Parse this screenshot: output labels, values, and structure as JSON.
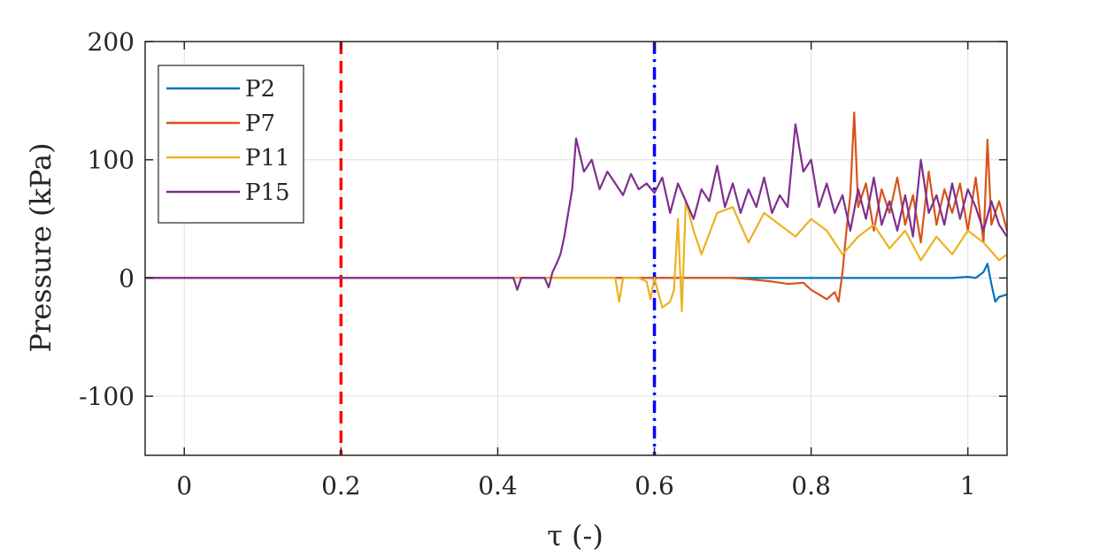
{
  "chart_data": {
    "type": "line",
    "title": "",
    "xlabel": "τ (-)",
    "ylabel": "Pressure (kPa)",
    "xlim": [
      -0.05,
      1.05
    ],
    "ylim": [
      -150,
      200
    ],
    "xticks": [
      0,
      0.2,
      0.4,
      0.6,
      0.8,
      1
    ],
    "xtick_labels": [
      "0",
      "0.2",
      "0.4",
      "0.6",
      "0.8",
      "1"
    ],
    "yticks": [
      -100,
      0,
      100,
      200
    ],
    "ytick_labels": [
      "-100",
      "0",
      "100",
      "200"
    ],
    "grid": true,
    "legend_position": "top-left",
    "vlines": [
      {
        "x": 0.2,
        "color": "#ff0000",
        "style": "dashed"
      },
      {
        "x": 0.6,
        "color": "#0000ff",
        "style": "dashdot"
      }
    ],
    "series": [
      {
        "name": "P2",
        "color": "#0072bd",
        "x": [
          -0.05,
          0.98,
          1.0,
          1.01,
          1.02,
          1.025,
          1.03,
          1.035,
          1.04,
          1.05
        ],
        "y": [
          0,
          0,
          1,
          0,
          5,
          12,
          -5,
          -20,
          -16,
          -14
        ]
      },
      {
        "name": "P7",
        "color": "#d95319",
        "x": [
          -0.05,
          0.7,
          0.72,
          0.75,
          0.77,
          0.79,
          0.8,
          0.81,
          0.82,
          0.83,
          0.835,
          0.84,
          0.845,
          0.85,
          0.855,
          0.86,
          0.87,
          0.88,
          0.89,
          0.9,
          0.91,
          0.92,
          0.93,
          0.94,
          0.95,
          0.96,
          0.97,
          0.98,
          0.99,
          1.0,
          1.01,
          1.02,
          1.025,
          1.03,
          1.04,
          1.05
        ],
        "y": [
          0,
          0,
          -1,
          -3,
          -5,
          -4,
          -10,
          -14,
          -18,
          -12,
          -20,
          5,
          40,
          70,
          140,
          60,
          80,
          40,
          75,
          55,
          85,
          45,
          70,
          30,
          90,
          45,
          75,
          55,
          80,
          40,
          85,
          30,
          117,
          45,
          65,
          40
        ]
      },
      {
        "name": "P11",
        "color": "#edb120",
        "x": [
          -0.05,
          0.55,
          0.555,
          0.56,
          0.58,
          0.59,
          0.595,
          0.6,
          0.61,
          0.62,
          0.625,
          0.63,
          0.635,
          0.64,
          0.65,
          0.66,
          0.68,
          0.7,
          0.72,
          0.74,
          0.76,
          0.78,
          0.8,
          0.82,
          0.84,
          0.86,
          0.88,
          0.9,
          0.92,
          0.94,
          0.96,
          0.98,
          1.0,
          1.02,
          1.04,
          1.05
        ],
        "y": [
          0,
          0,
          -20,
          0,
          0,
          -3,
          -18,
          0,
          -25,
          -20,
          -10,
          50,
          -28,
          65,
          40,
          20,
          55,
          60,
          30,
          55,
          45,
          35,
          50,
          40,
          20,
          35,
          45,
          25,
          40,
          15,
          35,
          20,
          40,
          30,
          15,
          20
        ]
      },
      {
        "name": "P15",
        "color": "#7e2f8e",
        "x": [
          -0.05,
          0.42,
          0.425,
          0.43,
          0.46,
          0.465,
          0.47,
          0.475,
          0.48,
          0.485,
          0.49,
          0.495,
          0.5,
          0.51,
          0.52,
          0.53,
          0.54,
          0.55,
          0.56,
          0.57,
          0.58,
          0.59,
          0.6,
          0.61,
          0.62,
          0.63,
          0.64,
          0.65,
          0.66,
          0.67,
          0.68,
          0.69,
          0.7,
          0.71,
          0.72,
          0.73,
          0.74,
          0.75,
          0.76,
          0.77,
          0.78,
          0.79,
          0.8,
          0.81,
          0.82,
          0.83,
          0.84,
          0.85,
          0.86,
          0.87,
          0.88,
          0.89,
          0.9,
          0.91,
          0.92,
          0.93,
          0.94,
          0.95,
          0.96,
          0.97,
          0.98,
          0.99,
          1.0,
          1.01,
          1.02,
          1.03,
          1.04,
          1.05
        ],
        "y": [
          0,
          0,
          -10,
          0,
          0,
          -8,
          5,
          12,
          20,
          35,
          55,
          75,
          118,
          90,
          100,
          75,
          90,
          80,
          70,
          88,
          75,
          80,
          72,
          85,
          55,
          80,
          65,
          50,
          75,
          65,
          95,
          60,
          80,
          55,
          75,
          60,
          85,
          55,
          70,
          60,
          130,
          90,
          100,
          60,
          80,
          55,
          70,
          40,
          75,
          50,
          85,
          45,
          65,
          40,
          70,
          35,
          100,
          55,
          70,
          45,
          80,
          50,
          75,
          60,
          40,
          65,
          45,
          35
        ]
      }
    ]
  }
}
